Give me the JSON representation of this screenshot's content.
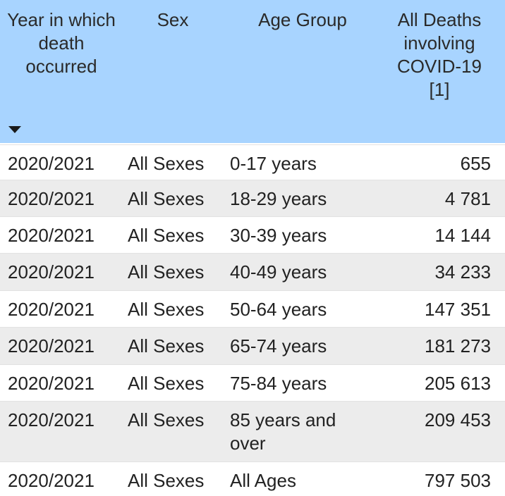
{
  "table": {
    "headers": {
      "year": "Year in which death occurred",
      "sex": "Sex",
      "age_group": "Age Group",
      "deaths": "All Deaths involving COVID-19 [1]"
    },
    "sort_icon": "sort-down-icon",
    "colors": {
      "header_bg": "#a8d4ff",
      "row_alt_bg": "#ececec",
      "row_bg": "#ffffff"
    },
    "rows": [
      {
        "year": "2020/2021",
        "sex": "All Sexes",
        "age_group": "0-17 years",
        "deaths": "655"
      },
      {
        "year": "2020/2021",
        "sex": "All Sexes",
        "age_group": "18-29 years",
        "deaths": "4 781"
      },
      {
        "year": "2020/2021",
        "sex": "All Sexes",
        "age_group": "30-39 years",
        "deaths": "14 144"
      },
      {
        "year": "2020/2021",
        "sex": "All Sexes",
        "age_group": "40-49 years",
        "deaths": "34 233"
      },
      {
        "year": "2020/2021",
        "sex": "All Sexes",
        "age_group": "50-64 years",
        "deaths": "147 351"
      },
      {
        "year": "2020/2021",
        "sex": "All Sexes",
        "age_group": "65-74 years",
        "deaths": "181 273"
      },
      {
        "year": "2020/2021",
        "sex": "All Sexes",
        "age_group": "75-84 years",
        "deaths": "205 613"
      },
      {
        "year": "2020/2021",
        "sex": "All Sexes",
        "age_group": "85 years and over",
        "deaths": "209 453"
      },
      {
        "year": "2020/2021",
        "sex": "All Sexes",
        "age_group": "All Ages",
        "deaths": "797 503"
      }
    ]
  }
}
